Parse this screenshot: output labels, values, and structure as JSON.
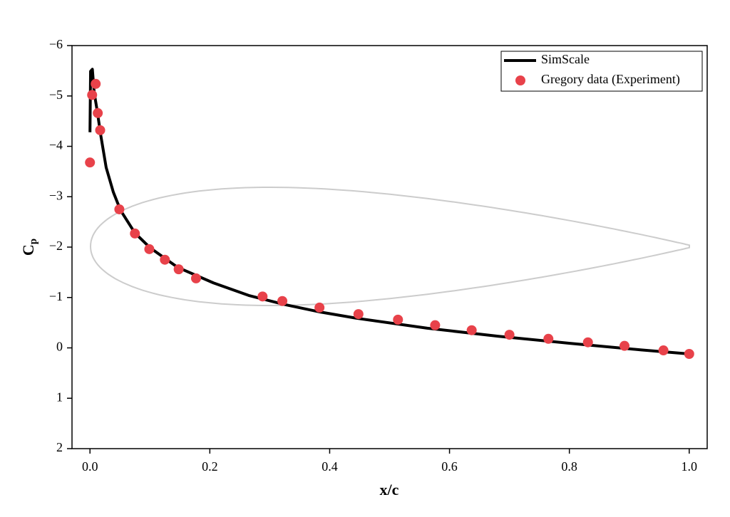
{
  "chart_data": {
    "type": "line",
    "xlabel": "x/c",
    "ylabel": "Cp",
    "xlim": [
      -0.03,
      1.03
    ],
    "ylim": [
      2,
      -6
    ],
    "xticks": [
      {
        "value": 0,
        "label": "0.0"
      },
      0.2,
      0.4,
      0.6,
      0.8,
      {
        "value": 1,
        "label": "1.0"
      }
    ],
    "yticks": [
      {
        "value": -6,
        "label": "−6"
      },
      {
        "value": -5,
        "label": "−5"
      },
      {
        "value": -4,
        "label": "−4"
      },
      {
        "value": -3,
        "label": "−3"
      },
      {
        "value": -2,
        "label": "−2"
      },
      {
        "value": -1,
        "label": "−1"
      },
      0,
      1,
      2
    ],
    "legend": "top-right",
    "series": [
      {
        "name": "SimScale",
        "type": "line",
        "color": "#000000",
        "x": [
          0,
          0.001,
          0.004,
          0.007,
          0.012,
          0.018,
          0.027,
          0.039,
          0.051,
          0.075,
          0.1,
          0.146,
          0.206,
          0.265,
          0.325,
          0.385,
          0.444,
          0.563,
          0.682,
          0.801,
          0.92,
          1.0
        ],
        "values": [
          -4.28,
          -5.49,
          -5.53,
          -5.07,
          -4.71,
          -4.22,
          -3.58,
          -3.09,
          -2.73,
          -2.28,
          -1.99,
          -1.6,
          -1.29,
          -1.04,
          -0.86,
          -0.71,
          -0.59,
          -0.39,
          -0.23,
          -0.09,
          0.04,
          0.12
        ]
      },
      {
        "name": "Gregory data (Experiment)",
        "type": "scatter",
        "color": "#e8424a",
        "x": [
          0,
          0.0036,
          0.0095,
          0.013,
          0.017,
          0.049,
          0.075,
          0.099,
          0.125,
          0.148,
          0.177,
          0.288,
          0.321,
          0.383,
          0.448,
          0.514,
          0.576,
          0.637,
          0.7,
          0.765,
          0.831,
          0.892,
          0.957,
          1.0
        ],
        "values": [
          -3.68,
          -5.02,
          -5.24,
          -4.66,
          -4.32,
          -2.75,
          -2.27,
          -1.96,
          -1.75,
          -1.56,
          -1.38,
          -1.02,
          -0.93,
          -0.8,
          -0.67,
          -0.56,
          -0.45,
          -0.35,
          -0.26,
          -0.18,
          -0.11,
          -0.04,
          0.05,
          0.12
        ]
      }
    ]
  }
}
